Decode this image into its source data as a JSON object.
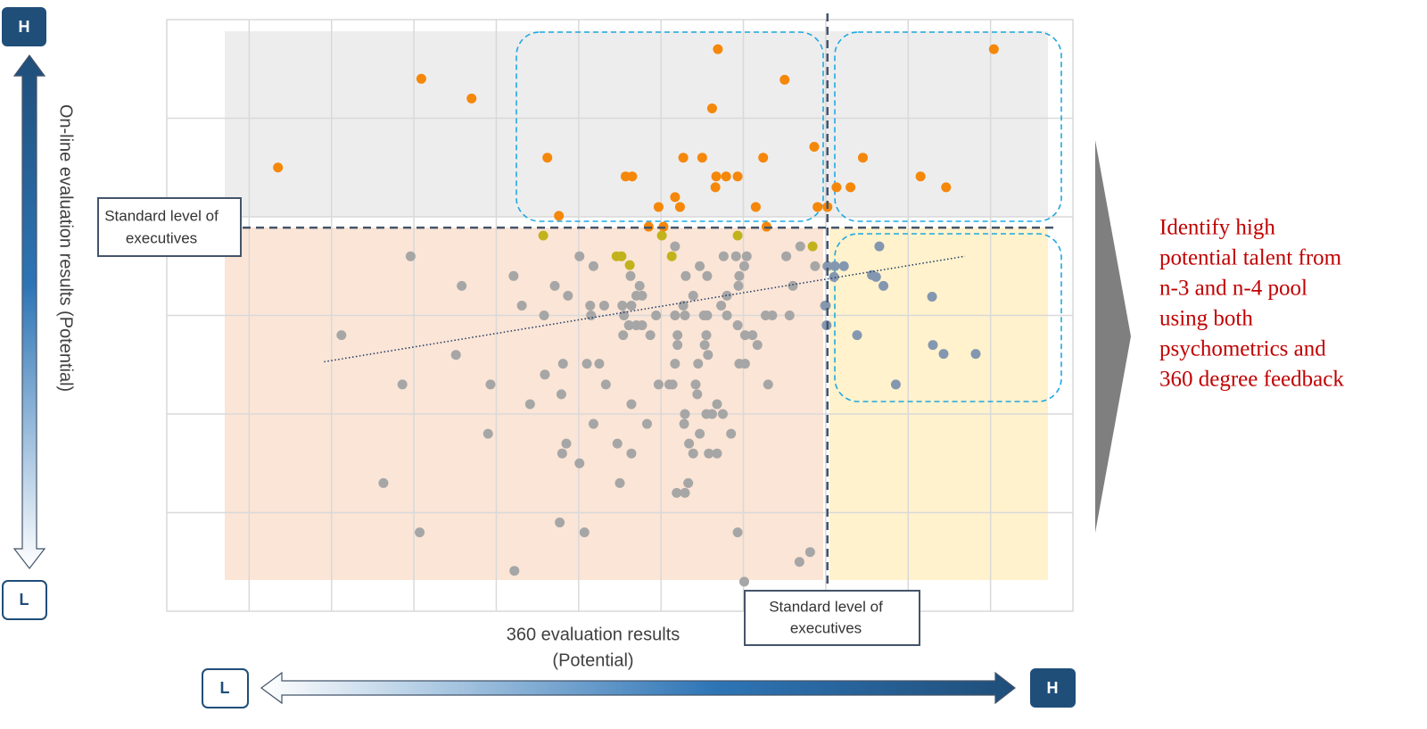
{
  "chart_data": {
    "type": "scatter",
    "y_high": "H",
    "y_low": "L",
    "x_low": "L",
    "x_high": "H",
    "y_label": "On-line evaluation results (Potential)",
    "x_label": [
      "360 evaluation results",
      "(Potential)"
    ],
    "y_standard_label": [
      "Standard level of",
      "executives"
    ],
    "x_standard_label": [
      "Standard level of",
      "executives"
    ],
    "callout": [
      "Identify high",
      "potential talent from",
      "n-3 and n-4 pool",
      "using both",
      "psychometrics and",
      "360 degree feedback"
    ],
    "xlim": [
      0,
      11
    ],
    "ylim": [
      0,
      6
    ],
    "xticks": [
      1,
      2,
      3,
      4,
      5,
      6,
      7,
      8,
      9,
      10
    ],
    "yticks": [
      1,
      2,
      3,
      4,
      5
    ],
    "grid": true,
    "x_threshold": 8.02,
    "y_threshold": 3.89,
    "trendline": {
      "x": [
        1.91,
        9.69
      ],
      "y": [
        2.53,
        3.6
      ]
    },
    "series": [
      {
        "color": "#f5870a",
        "x": [
          6.69,
          10.04,
          3.09,
          3.7,
          7.5,
          6.62,
          1.35,
          4.62,
          6.27,
          6.5,
          7.24,
          7.86,
          8.45,
          5.57,
          5.65,
          6.67,
          6.79,
          6.93,
          6.66,
          9.15,
          8.13,
          8.3,
          9.46,
          6.17,
          5.97,
          6.23,
          7.15,
          7.9,
          8.02,
          4.76,
          5.85,
          6.03,
          7.28
        ],
        "y": [
          5.7,
          5.7,
          5.4,
          5.2,
          5.39,
          5.1,
          4.5,
          4.6,
          4.6,
          4.6,
          4.6,
          4.71,
          4.6,
          4.41,
          4.41,
          4.41,
          4.41,
          4.41,
          4.3,
          4.41,
          4.3,
          4.3,
          4.3,
          4.2,
          4.1,
          4.1,
          4.1,
          4.1,
          4.1,
          4.01,
          3.9,
          3.9,
          3.9
        ]
      },
      {
        "color": "#c2b21c",
        "x": [
          4.57,
          6.01,
          6.93,
          5.46,
          5.52,
          5.62,
          6.13,
          7.84
        ],
        "y": [
          3.81,
          3.81,
          3.81,
          3.6,
          3.6,
          3.51,
          3.6,
          3.7
        ]
      },
      {
        "color": "#a6a6a6",
        "x": [
          2.96,
          5.01,
          5.18,
          6.17,
          6.91,
          7.69,
          7.52,
          3.58,
          4.21,
          4.71,
          4.87,
          4.31,
          4.58,
          5.14,
          5.15,
          5.31,
          5.53,
          5.63,
          5.74,
          5.7,
          5.64,
          5.77,
          5.55,
          6.76,
          6.47,
          6.56,
          6.3,
          6.39,
          6.27,
          6.17,
          6.29,
          6.52,
          6.56,
          6.73,
          6.8,
          7.04,
          7.01,
          6.95,
          6.94,
          6.8,
          6.93,
          7.27,
          7.35,
          7.56,
          7.87,
          7.6,
          5.94,
          5.61,
          5.7,
          5.77,
          5.54,
          5.87,
          6.2,
          6.55,
          6.53,
          7.02,
          7.17,
          7.11,
          2.12,
          3.51,
          4.81,
          5.1,
          5.25,
          6.2,
          6.57,
          6.17,
          6.45,
          6.95,
          7.02,
          4.59,
          2.86,
          3.93,
          4.79,
          5.33,
          5.97,
          6.1,
          6.14,
          6.42,
          6.44,
          7.3,
          4.41,
          5.64,
          6.68,
          6.29,
          6.55,
          6.62,
          6.75,
          6.28,
          5.18,
          5.83,
          3.9,
          6.47,
          6.85,
          4.85,
          5.47,
          4.8,
          5.64,
          6.34,
          6.39,
          6.58,
          6.68,
          5.01,
          2.63,
          5.5,
          6.33,
          6.19,
          6.29,
          4.77,
          3.07,
          5.07,
          6.93,
          7.81,
          7.68,
          4.22,
          7.01,
          7.99
        ],
        "y": [
          3.6,
          3.6,
          3.5,
          3.7,
          3.6,
          3.7,
          3.6,
          3.3,
          3.4,
          3.3,
          3.2,
          3.1,
          3.0,
          3.1,
          3.0,
          3.1,
          3.1,
          3.4,
          3.3,
          3.2,
          3.1,
          3.2,
          3.0,
          3.6,
          3.5,
          3.4,
          3.4,
          3.2,
          3.1,
          3.0,
          3.0,
          3.0,
          3.0,
          3.1,
          3.0,
          3.6,
          3.5,
          3.4,
          3.3,
          3.2,
          2.9,
          3.0,
          3.0,
          3.0,
          3.5,
          3.3,
          3.0,
          2.9,
          2.9,
          2.9,
          2.8,
          2.8,
          2.8,
          2.8,
          2.7,
          2.8,
          2.7,
          2.8,
          2.8,
          2.6,
          2.51,
          2.51,
          2.51,
          2.7,
          2.6,
          2.51,
          2.51,
          2.51,
          2.51,
          2.4,
          2.3,
          2.3,
          2.2,
          2.3,
          2.3,
          2.3,
          2.3,
          2.3,
          2.2,
          2.3,
          2.1,
          2.1,
          2.1,
          2.0,
          2.0,
          2.0,
          2.0,
          1.9,
          1.9,
          1.9,
          1.8,
          1.8,
          1.8,
          1.7,
          1.7,
          1.6,
          1.6,
          1.7,
          1.6,
          1.6,
          1.6,
          1.5,
          1.3,
          1.3,
          1.3,
          1.2,
          1.2,
          0.9,
          0.8,
          0.8,
          0.8,
          0.6,
          0.5,
          0.41,
          0.3,
          3.1
        ]
      },
      {
        "color": "#8497b0",
        "x": [
          8.65,
          8.02,
          8.11,
          8.22,
          8.1,
          8.56,
          8.61,
          8.7,
          9.29,
          8.0,
          8.01,
          8.38,
          9.3,
          9.43,
          9.82,
          8.85
        ],
        "y": [
          3.7,
          3.5,
          3.5,
          3.5,
          3.39,
          3.41,
          3.39,
          3.3,
          3.19,
          3.1,
          2.9,
          2.8,
          2.7,
          2.61,
          2.61,
          2.3
        ]
      }
    ]
  }
}
